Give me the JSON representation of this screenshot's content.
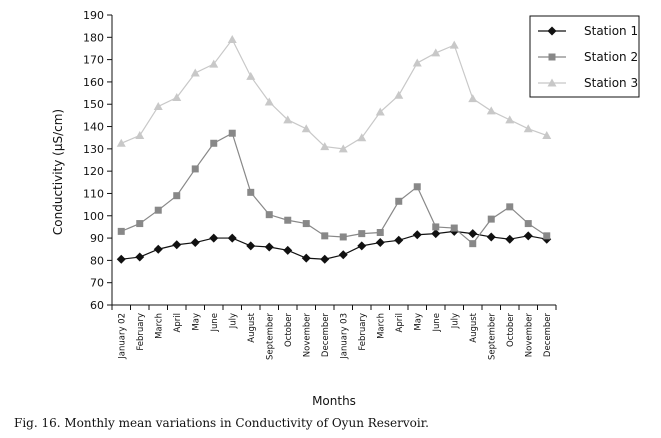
{
  "caption": "Fig. 16. Monthly mean variations in Conductivity of Oyun Reservoir.",
  "chart_data": {
    "type": "line",
    "title": "",
    "xlabel": "Months",
    "ylabel": "Conductivity (µS/cm)",
    "ylim": [
      60,
      190
    ],
    "yticks": [
      60,
      70,
      80,
      90,
      100,
      110,
      120,
      130,
      140,
      150,
      160,
      170,
      180,
      190
    ],
    "grid": false,
    "legend_position": "top-right",
    "categories": [
      "January 02",
      "February",
      "March",
      "April",
      "May",
      "June",
      "July",
      "August",
      "September",
      "October",
      "November",
      "December",
      "January 03",
      "February",
      "March",
      "April",
      "May",
      "June",
      "July",
      "August",
      "September",
      "October",
      "November",
      "December"
    ],
    "series": [
      {
        "name": "Station 1",
        "color": "#111111",
        "marker": "diamond",
        "values": [
          80.5,
          81.5,
          85,
          87,
          88,
          90,
          90,
          86.5,
          86,
          84.5,
          81,
          80.5,
          82.5,
          86.5,
          88,
          89,
          91.5,
          92,
          93,
          92,
          90.5,
          89.5,
          91,
          89.5
        ]
      },
      {
        "name": "Station 2",
        "color": "#888888",
        "marker": "square",
        "values": [
          93,
          96.5,
          102.5,
          109,
          121,
          132.5,
          137,
          110.5,
          100.5,
          98,
          96.5,
          91,
          90.5,
          92,
          92.5,
          106.5,
          113,
          95,
          94.5,
          87.5,
          98.5,
          104,
          96.5,
          91
        ]
      },
      {
        "name": "Station 3",
        "color": "#c8c8c8",
        "marker": "triangle",
        "values": [
          132.5,
          136,
          149,
          153,
          164,
          168,
          179,
          162.5,
          151,
          143,
          139,
          131,
          130,
          135,
          146.5,
          154,
          168.5,
          173,
          176.5,
          152.5,
          147,
          143,
          139,
          136
        ]
      }
    ]
  }
}
